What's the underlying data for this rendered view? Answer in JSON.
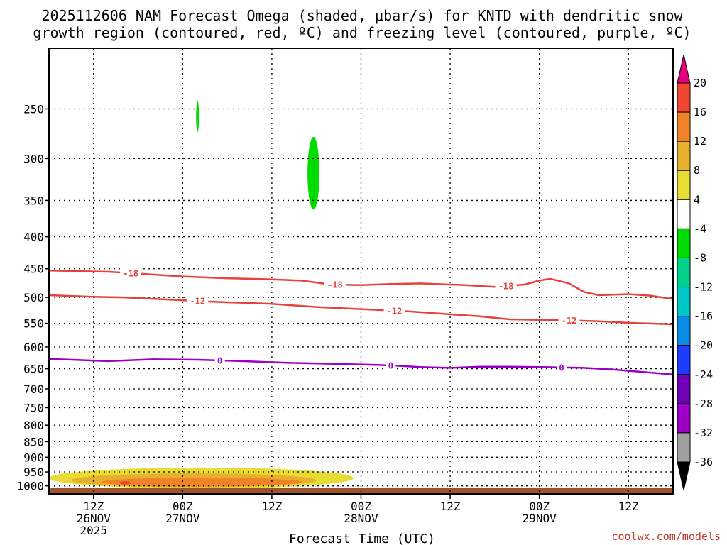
{
  "title_line1": "2025112606 NAM Forecast Omega (shaded, μbar/s) for KNTD with dendritic snow",
  "title_line2": "growth region (contoured, red, ºC) and freezing level (contoured, purple, ºC)",
  "source": "coolwx.com/models",
  "chart_data": {
    "type": "heatmap",
    "xlabel": "Forecast Time (UTC)",
    "x_range_hours": [
      0,
      84
    ],
    "y_scale": "log-pressure",
    "y_range_mb": [
      200,
      1030
    ],
    "y_ticks": [
      250,
      300,
      350,
      400,
      450,
      500,
      550,
      600,
      650,
      700,
      750,
      800,
      850,
      900,
      950,
      1000
    ],
    "x_ticks": [
      {
        "hour": 6,
        "lines": [
          "12Z",
          "26NOV",
          "2025"
        ]
      },
      {
        "hour": 18,
        "lines": [
          "00Z",
          "27NOV"
        ]
      },
      {
        "hour": 30,
        "lines": [
          "12Z",
          ""
        ]
      },
      {
        "hour": 42,
        "lines": [
          "00Z",
          "28NOV"
        ]
      },
      {
        "hour": 54,
        "lines": [
          "12Z",
          ""
        ]
      },
      {
        "hour": 66,
        "lines": [
          "00Z",
          "29NOV"
        ]
      },
      {
        "hour": 78,
        "lines": [
          "12Z",
          ""
        ]
      }
    ],
    "grid": "dotted",
    "colorbar": {
      "units": "μbar/s",
      "levels": [
        -36,
        -32,
        -28,
        -24,
        -20,
        -16,
        -12,
        -8,
        -4,
        4,
        8,
        12,
        16,
        20
      ],
      "colors": [
        "#a0a0a0",
        "#9e00c8",
        "#7000b8",
        "#1e3cff",
        "#0a8ce6",
        "#00c8c8",
        "#00d28c",
        "#00dc00",
        "#ffffff",
        "#e6dc32",
        "#e6af2d",
        "#f08228",
        "#f04632"
      ],
      "under_color": "#000000",
      "over_color": "#e6007e"
    },
    "contours": [
      {
        "name": "-18",
        "color": "#e8403a",
        "points": [
          [
            0,
            453
          ],
          [
            8,
            455
          ],
          [
            12,
            458
          ],
          [
            18,
            463
          ],
          [
            24,
            466
          ],
          [
            30,
            468
          ],
          [
            34,
            470
          ],
          [
            38,
            477
          ],
          [
            42,
            478
          ],
          [
            46,
            476
          ],
          [
            50,
            475
          ],
          [
            56,
            478
          ],
          [
            60,
            481
          ],
          [
            64,
            477
          ],
          [
            66,
            470
          ],
          [
            67.5,
            467
          ],
          [
            70,
            475
          ],
          [
            72,
            490
          ],
          [
            74,
            496
          ],
          [
            78,
            494
          ],
          [
            81,
            497
          ],
          [
            84,
            503
          ]
        ],
        "label_hours": [
          11,
          38.5,
          61.5
        ]
      },
      {
        "name": "-12",
        "color": "#e8403a",
        "points": [
          [
            0,
            496
          ],
          [
            6,
            499
          ],
          [
            10,
            500
          ],
          [
            16,
            504
          ],
          [
            22,
            508
          ],
          [
            30,
            512
          ],
          [
            36,
            518
          ],
          [
            42,
            522
          ],
          [
            48,
            526
          ],
          [
            54,
            532
          ],
          [
            58,
            536
          ],
          [
            62,
            542
          ],
          [
            66,
            543
          ],
          [
            70,
            544
          ],
          [
            74,
            546
          ],
          [
            78,
            549
          ],
          [
            84,
            552
          ]
        ],
        "label_hours": [
          20,
          46.5,
          70
        ]
      },
      {
        "name": "0",
        "color": "#9a00c8",
        "points": [
          [
            0,
            627
          ],
          [
            8,
            632
          ],
          [
            14,
            628
          ],
          [
            20,
            629
          ],
          [
            26,
            632
          ],
          [
            32,
            636
          ],
          [
            40,
            639
          ],
          [
            46,
            642
          ],
          [
            50,
            646
          ],
          [
            54,
            648
          ],
          [
            58,
            645
          ],
          [
            62,
            645
          ],
          [
            66,
            646
          ],
          [
            72,
            648
          ],
          [
            76,
            652
          ],
          [
            80,
            658
          ],
          [
            84,
            664
          ]
        ],
        "label_hours": [
          23,
          46,
          69
        ]
      }
    ],
    "shaded_regions": [
      {
        "value_range": [
          -8,
          -4
        ],
        "color": "#00dc00",
        "x_range_hours": [
          19.8,
          20.2
        ],
        "p_range_mb": [
          243,
          272
        ]
      },
      {
        "value_range": [
          -8,
          -4
        ],
        "color": "#00dc00",
        "x_range_hours": [
          34.8,
          36.4
        ],
        "p_range_mb": [
          277,
          362
        ]
      },
      {
        "value_range": [
          4,
          8
        ],
        "color": "#e6dc32",
        "x_range_hours": [
          0,
          41
        ],
        "p_range_mb": [
          935,
          1010
        ]
      },
      {
        "value_range": [
          8,
          12
        ],
        "color": "#e6af2d",
        "x_range_hours": [
          3,
          36
        ],
        "p_range_mb": [
          955,
          1005
        ]
      },
      {
        "value_range": [
          12,
          16
        ],
        "color": "#f08228",
        "x_range_hours": [
          7,
          34
        ],
        "p_range_mb": [
          970,
          1002
        ]
      },
      {
        "value_range": [
          16,
          20
        ],
        "color": "#f04632",
        "x_range_hours": [
          9.5,
          11
        ],
        "p_range_mb": [
          983,
          995
        ]
      }
    ],
    "terrain": {
      "color": "#a0522d",
      "p_top_mb": 1008
    }
  }
}
